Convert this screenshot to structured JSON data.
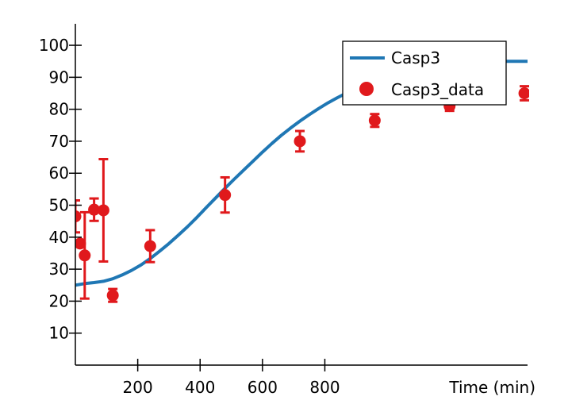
{
  "chart_data": {
    "type": "line",
    "title": "",
    "xlabel": "Time (min)",
    "ylabel": "",
    "xlim": [
      0,
      1450
    ],
    "ylim": [
      0,
      102
    ],
    "grid": false,
    "legend_position": "top-right",
    "x_ticks": [
      200,
      400,
      600,
      800
    ],
    "y_ticks": [
      10,
      20,
      30,
      40,
      50,
      60,
      70,
      80,
      90,
      100
    ],
    "colors": {
      "model": "#1f77b4",
      "data": "#e0191c"
    },
    "series": [
      {
        "name": "Casp3",
        "kind": "line",
        "x": [
          0,
          30,
          60,
          90,
          120,
          150,
          180,
          210,
          240,
          270,
          300,
          330,
          360,
          390,
          420,
          450,
          480,
          510,
          540,
          570,
          600,
          630,
          660,
          690,
          720,
          750,
          780,
          810,
          840,
          870,
          900,
          930,
          960,
          990,
          1020,
          1050,
          1080,
          1110,
          1140,
          1170,
          1200,
          1230,
          1260,
          1290,
          1320,
          1350,
          1380,
          1410,
          1450
        ],
        "y": [
          25,
          25.5,
          25.8,
          26.2,
          27,
          28.2,
          29.6,
          31.3,
          33.3,
          35.6,
          38.0,
          40.6,
          43.3,
          46.2,
          49.3,
          52.3,
          55.3,
          58.2,
          61.0,
          63.8,
          66.6,
          69.3,
          71.8,
          74.1,
          76.3,
          78.3,
          80.2,
          82.0,
          83.6,
          85.1,
          86.5,
          87.8,
          89.0,
          90.0,
          90.9,
          91.7,
          92.4,
          93.0,
          93.5,
          93.9,
          94.2,
          94.5,
          94.7,
          94.8,
          94.9,
          95.0,
          95.0,
          95.0,
          95.0
        ]
      },
      {
        "name": "Casp3_data",
        "kind": "scatter",
        "points": [
          {
            "x": 0,
            "y": 46.5,
            "err": 5
          },
          {
            "x": 15,
            "y": 38,
            "err": 0
          },
          {
            "x": 30,
            "y": 34.3,
            "err": 13.5
          },
          {
            "x": 60,
            "y": 48.6,
            "err": 3.5
          },
          {
            "x": 90,
            "y": 48.4,
            "err": 16
          },
          {
            "x": 120,
            "y": 21.8,
            "err": 2
          },
          {
            "x": 240,
            "y": 37.2,
            "err": 5
          },
          {
            "x": 480,
            "y": 53.2,
            "err": 5.5
          },
          {
            "x": 720,
            "y": 70,
            "err": 3.2
          },
          {
            "x": 960,
            "y": 76.5,
            "err": 2
          },
          {
            "x": 1200,
            "y": 81,
            "err": 1.5
          },
          {
            "x": 1440,
            "y": 85,
            "err": 2.2
          }
        ]
      }
    ]
  }
}
